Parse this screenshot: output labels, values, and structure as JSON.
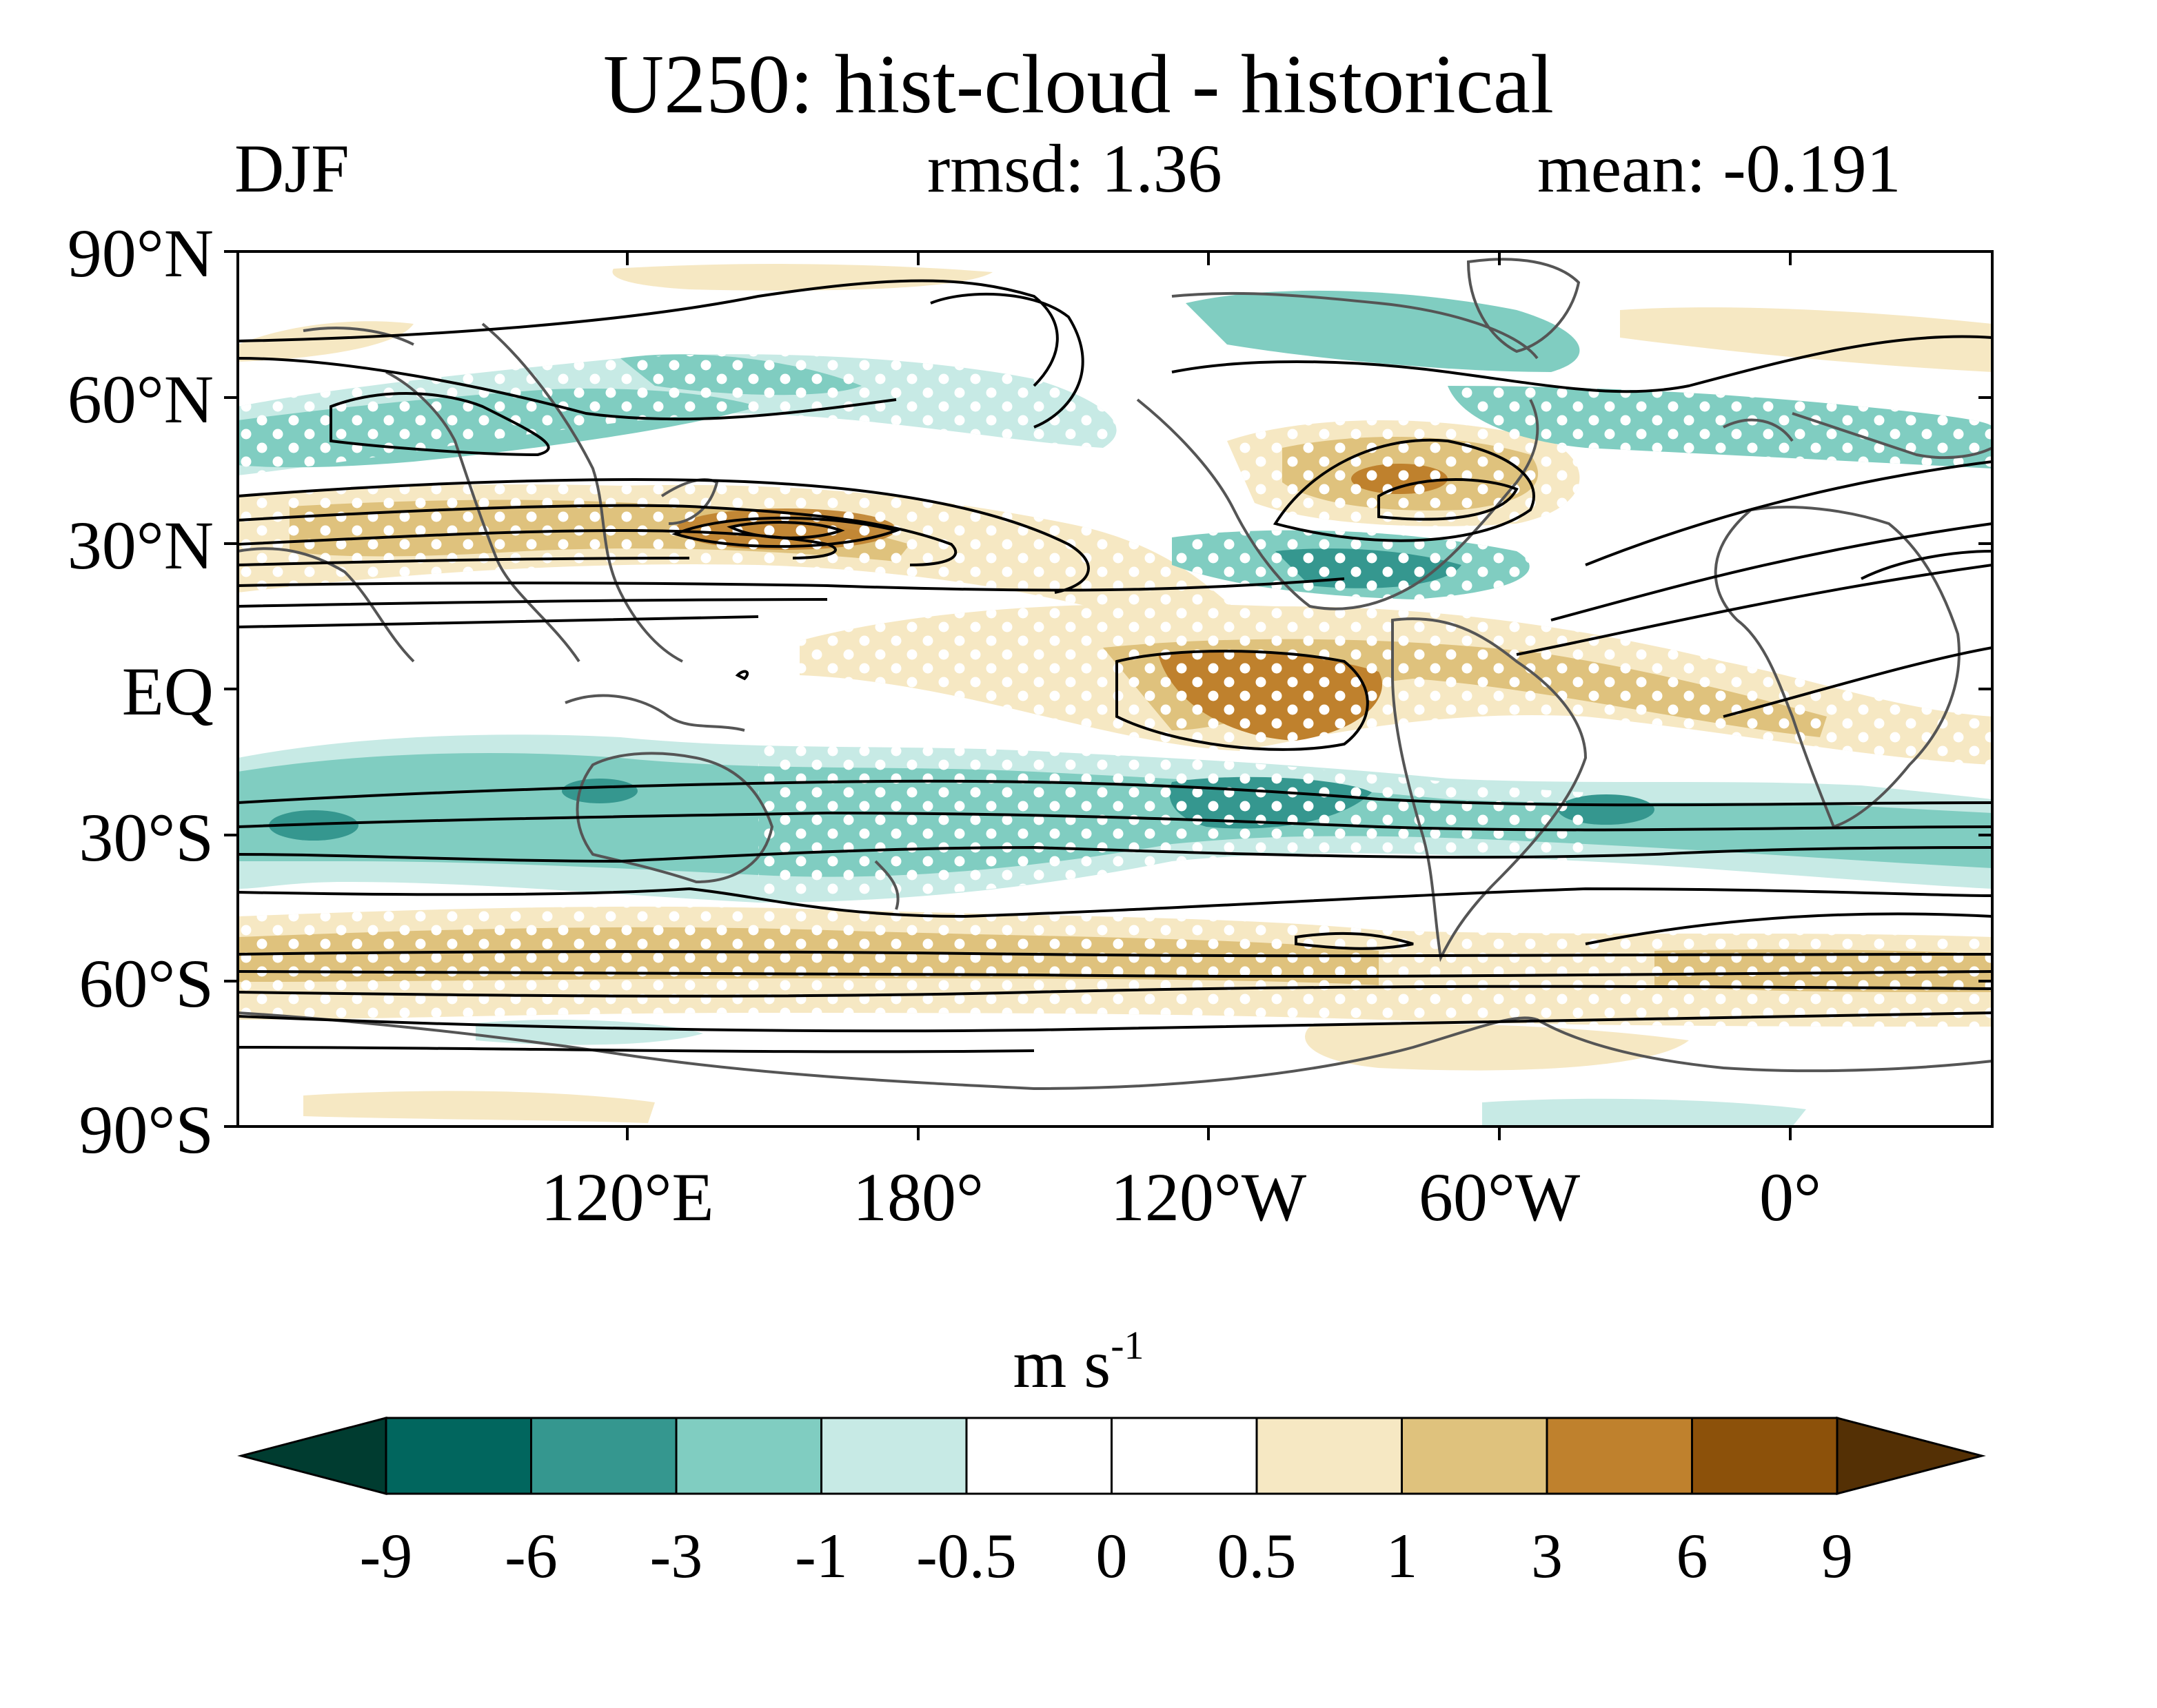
{
  "title": "U250: hist-cloud - historical",
  "season": "DJF",
  "stats": {
    "rmsd": "rmsd: 1.36",
    "mean": "mean: -0.191"
  },
  "map": {
    "lat_labels": [
      "90°N",
      "60°N",
      "30°N",
      "EQ",
      "30°S",
      "60°S",
      "90°S"
    ],
    "lon_labels": [
      "120°E",
      "180°",
      "120°W",
      "60°W",
      "0°"
    ],
    "central_longitude": 160,
    "lon_range": [
      40,
      400
    ],
    "lat_range": [
      -90,
      90
    ]
  },
  "colorbar": {
    "units_base": "m s",
    "units_exp": "-1",
    "levels": [
      "-9",
      "-6",
      "-3",
      "-1",
      "-0.5",
      "0",
      "0.5",
      "1",
      "3",
      "6",
      "9"
    ],
    "colors": [
      "#003c30",
      "#01665e",
      "#35978f",
      "#80cdc1",
      "#c7eae5",
      "#ffffff",
      "#ffffff",
      "#f6e8c3",
      "#dfc27d",
      "#bf812d",
      "#8c510a",
      "#543005"
    ]
  },
  "legend": {
    "contours": "climatology contours (black)",
    "stipple": "white dots"
  }
}
